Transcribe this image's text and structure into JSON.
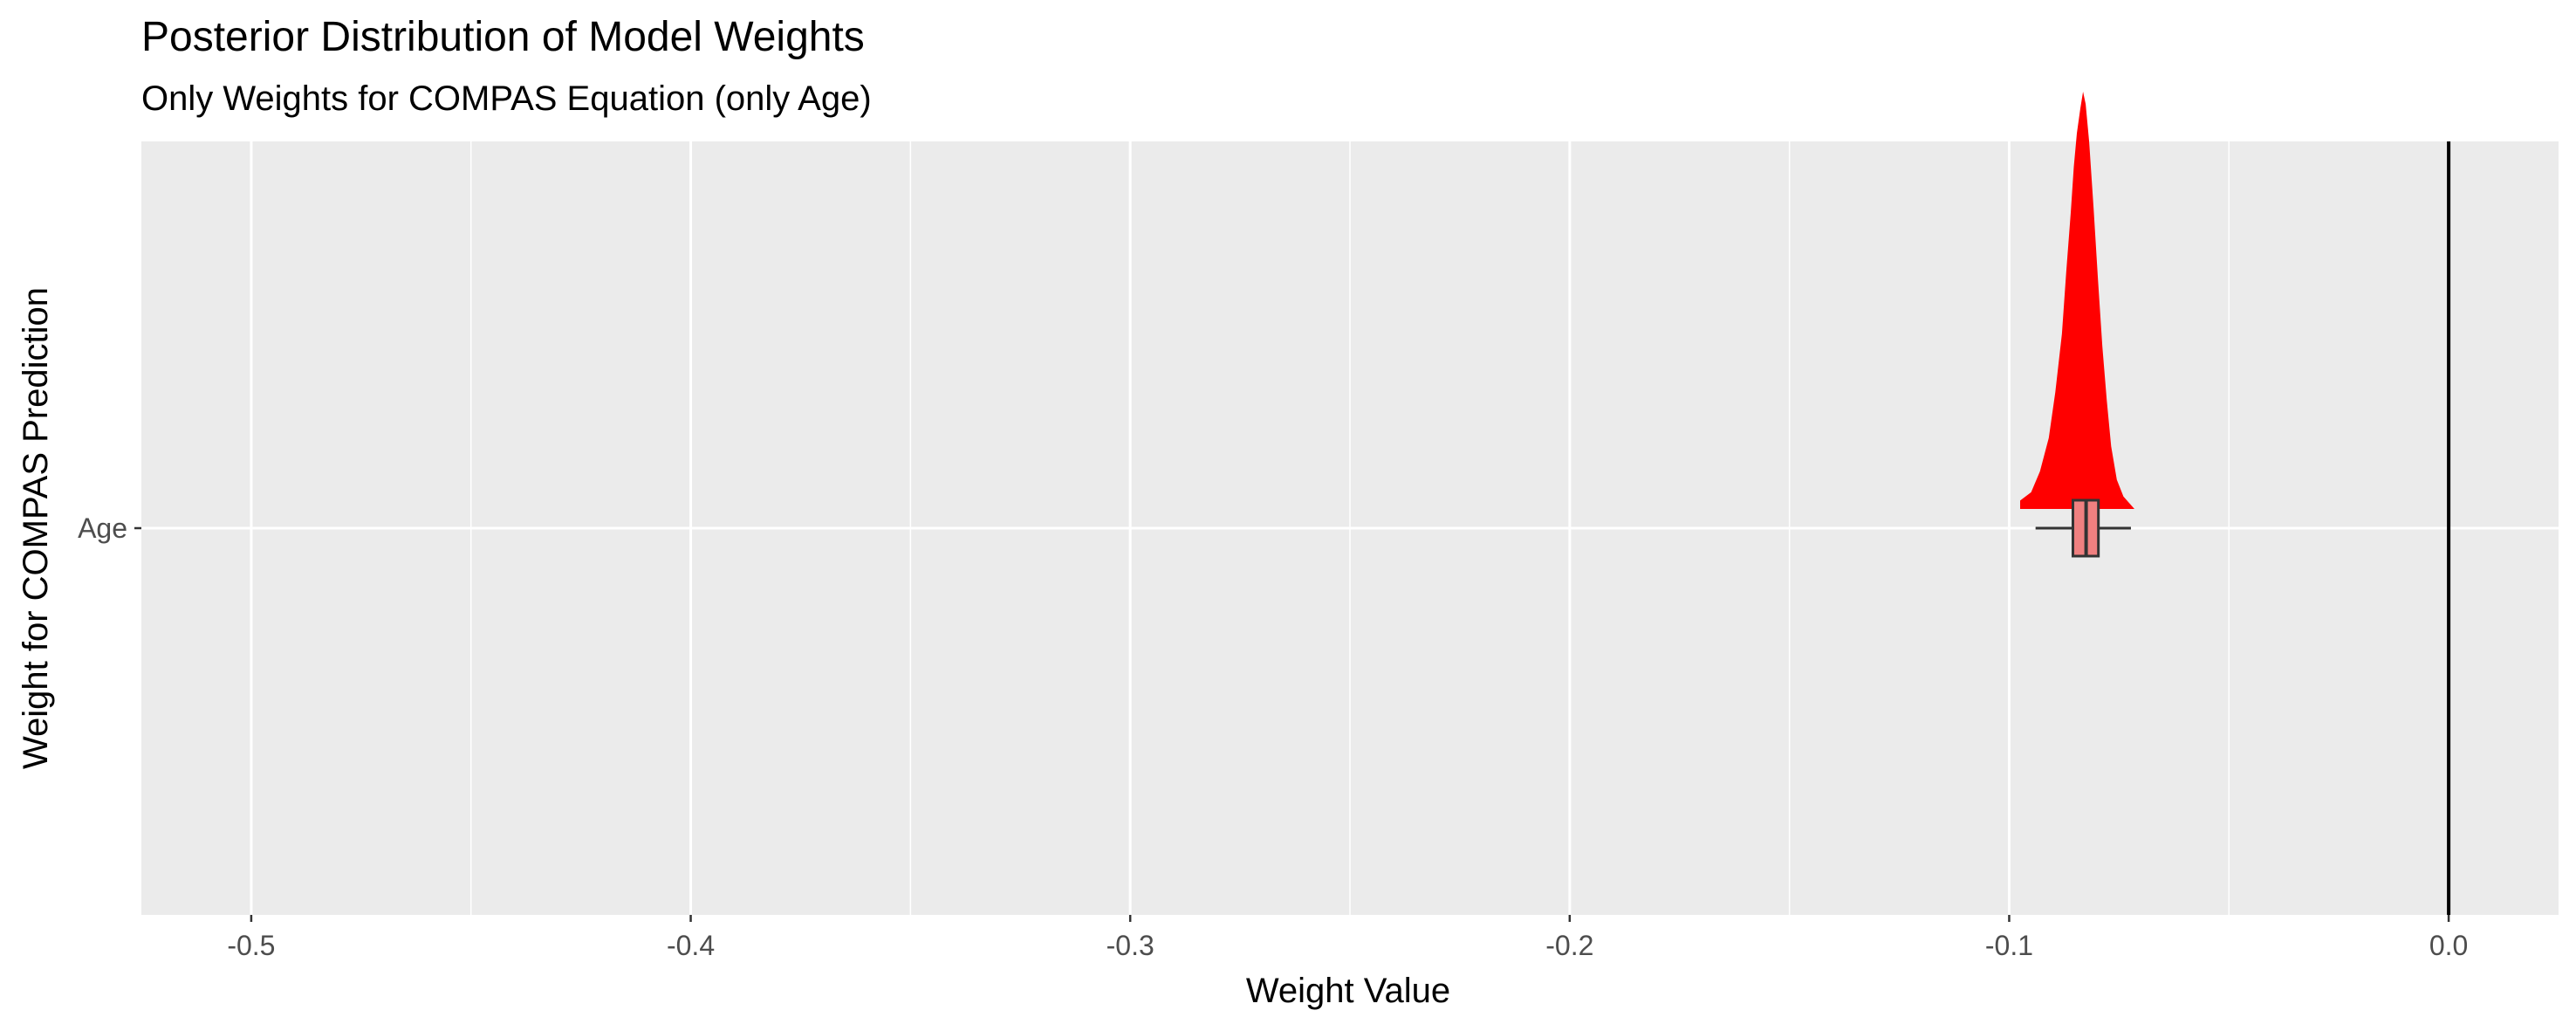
{
  "chart_data": {
    "type": "violin",
    "title": "Posterior Distribution of Model Weights",
    "subtitle": "Only Weights for COMPAS Equation (only Age)",
    "xlabel": "Weight Value",
    "ylabel": "Weight for COMPAS Prediction",
    "xlim": [
      -0.525,
      0.025
    ],
    "xticks": [
      -0.5,
      -0.4,
      -0.3,
      -0.2,
      -0.1,
      0.0
    ],
    "xtick_labels": [
      "-0.5",
      "-0.4",
      "-0.3",
      "-0.2",
      "-0.1",
      "0.0"
    ],
    "categories": [
      "Age"
    ],
    "reference_line_x": 0.0,
    "grid": true,
    "fill_color": "#ff0000",
    "box_fill_color": "#f08080",
    "panel_color": "#ebebeb",
    "distributions": [
      {
        "category": "Age",
        "density": [
          [
            -0.0975,
            0.02
          ],
          [
            -0.095,
            0.04
          ],
          [
            -0.093,
            0.09
          ],
          [
            -0.091,
            0.17
          ],
          [
            -0.0895,
            0.28
          ],
          [
            -0.088,
            0.42
          ],
          [
            -0.087,
            0.57
          ],
          [
            -0.086,
            0.71
          ],
          [
            -0.0853,
            0.82
          ],
          [
            -0.0846,
            0.9
          ],
          [
            -0.0838,
            0.96
          ],
          [
            -0.0832,
            1.0
          ],
          [
            -0.0826,
            0.97
          ],
          [
            -0.0818,
            0.88
          ],
          [
            -0.0808,
            0.72
          ],
          [
            -0.0798,
            0.55
          ],
          [
            -0.0788,
            0.39
          ],
          [
            -0.0778,
            0.26
          ],
          [
            -0.0768,
            0.15
          ],
          [
            -0.0755,
            0.07
          ],
          [
            -0.074,
            0.03
          ],
          [
            -0.0715,
            0.0
          ]
        ],
        "box": {
          "whisker_low": -0.094,
          "q1": -0.0855,
          "median": -0.0825,
          "q3": -0.0797,
          "whisker_high": -0.0723
        }
      }
    ]
  }
}
